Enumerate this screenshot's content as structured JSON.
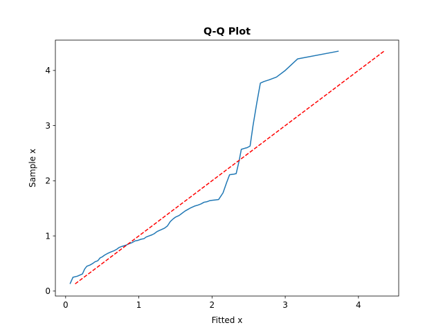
{
  "chart_data": {
    "type": "line",
    "title": "Q-Q Plot",
    "xlabel": "Fitted x",
    "ylabel": "Sample x",
    "xlim": [
      -0.14,
      4.55
    ],
    "ylim": [
      -0.09,
      4.55
    ],
    "xticks": [
      0,
      1,
      2,
      3,
      4
    ],
    "yticks": [
      0,
      1,
      2,
      3,
      4
    ],
    "grid": false,
    "series": [
      {
        "style": "solid",
        "color": "#1f77b4",
        "x": [
          0.06,
          0.1,
          0.16,
          0.23,
          0.26,
          0.29,
          0.33,
          0.37,
          0.4,
          0.44,
          0.47,
          0.5,
          0.53,
          0.57,
          0.62,
          0.66,
          0.7,
          0.73,
          0.77,
          0.82,
          0.87,
          0.91,
          0.95,
          0.99,
          1.03,
          1.07,
          1.1,
          1.14,
          1.18,
          1.21,
          1.25,
          1.3,
          1.35,
          1.39,
          1.43,
          1.47,
          1.5,
          1.55,
          1.59,
          1.63,
          1.67,
          1.71,
          1.76,
          1.81,
          1.85,
          1.89,
          1.93,
          1.97,
          2.03,
          2.09,
          2.15,
          2.2,
          2.24,
          2.3,
          2.33,
          2.37,
          2.4,
          2.45,
          2.48,
          2.52,
          2.56,
          2.61,
          2.66,
          2.71,
          2.78,
          2.88,
          3.0,
          3.17,
          3.73
        ],
        "y": [
          0.13,
          0.25,
          0.27,
          0.31,
          0.4,
          0.45,
          0.47,
          0.5,
          0.53,
          0.55,
          0.6,
          0.62,
          0.65,
          0.68,
          0.71,
          0.73,
          0.76,
          0.79,
          0.81,
          0.83,
          0.86,
          0.88,
          0.91,
          0.92,
          0.94,
          0.95,
          0.98,
          1.0,
          1.02,
          1.04,
          1.08,
          1.11,
          1.14,
          1.18,
          1.26,
          1.31,
          1.34,
          1.37,
          1.41,
          1.45,
          1.48,
          1.51,
          1.54,
          1.56,
          1.58,
          1.61,
          1.62,
          1.64,
          1.65,
          1.66,
          1.78,
          1.97,
          2.11,
          2.12,
          2.13,
          2.36,
          2.57,
          2.59,
          2.6,
          2.63,
          3.0,
          3.4,
          3.77,
          3.8,
          3.83,
          3.88,
          4.0,
          4.21,
          4.35
        ]
      },
      {
        "style": "dashed",
        "color": "#ff0000",
        "x": [
          0.13,
          4.35
        ],
        "y": [
          0.13,
          4.35
        ]
      }
    ]
  }
}
